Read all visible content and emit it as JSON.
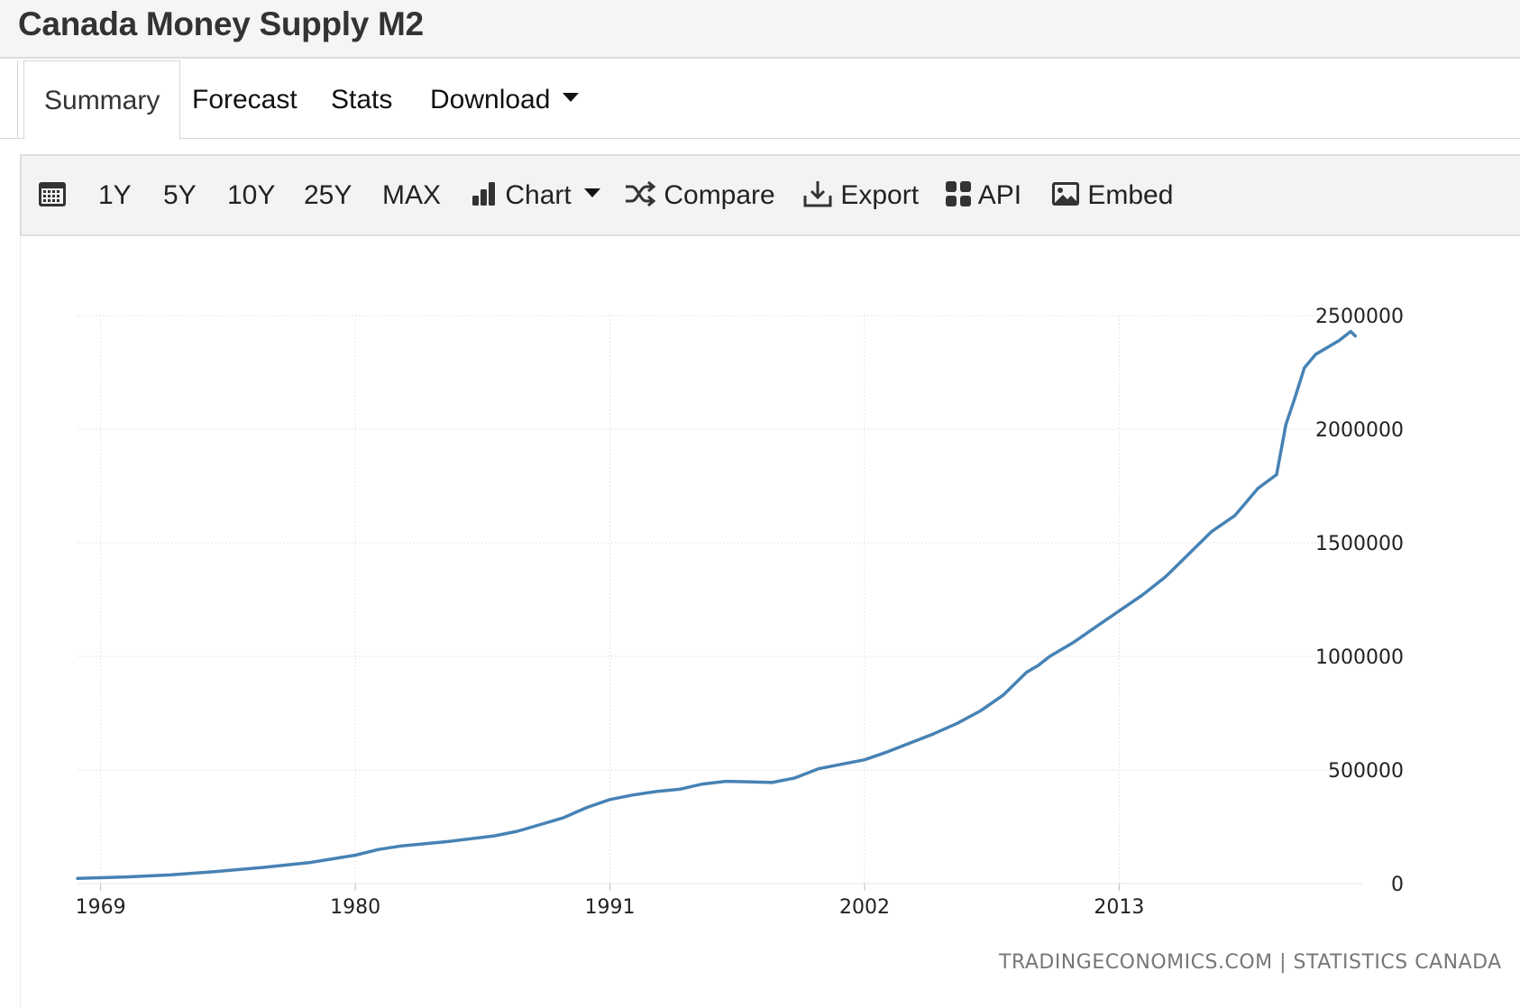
{
  "page": {
    "title": "Canada Money Supply M2"
  },
  "tabs": [
    {
      "label": "Summary",
      "active": true
    },
    {
      "label": "Forecast"
    },
    {
      "label": "Stats"
    },
    {
      "label": "Download",
      "has_dropdown": true
    }
  ],
  "toolbar": {
    "calendar_icon": "calendar-icon",
    "ranges": [
      "1Y",
      "5Y",
      "10Y",
      "25Y",
      "MAX"
    ],
    "chart_label": "Chart",
    "compare_label": "Compare",
    "export_label": "Export",
    "api_label": "API",
    "embed_label": "Embed"
  },
  "colors": {
    "series": "#4682b4",
    "grid": "#e6e6e6"
  },
  "source_text": "TRADINGECONOMICS.COM | STATISTICS CANADA",
  "chart_data": {
    "type": "line",
    "title": "",
    "xlabel": "",
    "ylabel": "",
    "x_ticks": [
      "1969",
      "1980",
      "1991",
      "2002",
      "2013"
    ],
    "y_ticks": [
      0,
      500000,
      1000000,
      1500000,
      2000000,
      2500000
    ],
    "xlim": [
      1968,
      2023.5
    ],
    "ylim": [
      0,
      2500000
    ],
    "y_axis_position": "right",
    "grid": true,
    "legend": "none",
    "series": [
      {
        "x": [
          1968,
          1970,
          1972,
          1974,
          1976,
          1978,
          1980,
          1981,
          1982,
          1984,
          1986,
          1987,
          1988,
          1989,
          1990,
          1991,
          1992,
          1993,
          1994,
          1995,
          1996,
          1997,
          1998,
          1999,
          2000,
          2001,
          2002,
          2003,
          2004,
          2005,
          2006,
          2007,
          2008,
          2009,
          2009.5,
          2010,
          2011,
          2012,
          2013,
          2014,
          2015,
          2016,
          2017,
          2018,
          2019,
          2019.8,
          2020.2,
          2020.6,
          2021,
          2021.5,
          2022,
          2022.5,
          2023,
          2023.2
        ],
        "y": [
          23000,
          29000,
          38000,
          53000,
          71000,
          92000,
          125000,
          150000,
          166000,
          185000,
          210000,
          230000,
          260000,
          290000,
          335000,
          370000,
          390000,
          405000,
          415000,
          438000,
          450000,
          448000,
          445000,
          465000,
          505000,
          525000,
          545000,
          580000,
          620000,
          660000,
          705000,
          760000,
          830000,
          930000,
          960000,
          1000000,
          1060000,
          1130000,
          1200000,
          1270000,
          1350000,
          1450000,
          1550000,
          1620000,
          1740000,
          1800000,
          2020000,
          2140000,
          2270000,
          2330000,
          2360000,
          2390000,
          2430000,
          2410000
        ]
      }
    ]
  }
}
